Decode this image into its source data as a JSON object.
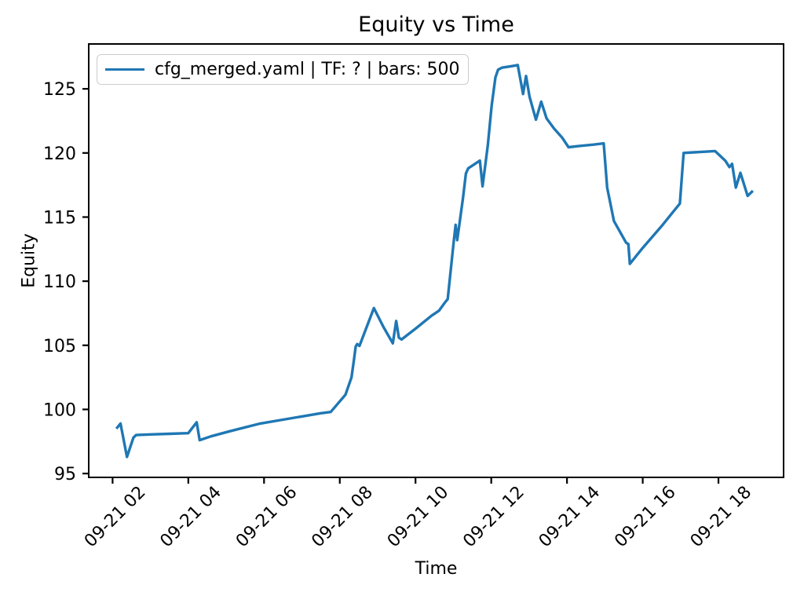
{
  "chart_data": {
    "type": "line",
    "title": "Equity vs Time",
    "xlabel": "Time",
    "ylabel": "Equity",
    "grid": false,
    "legend_position": "upper left",
    "line_color": "#1f77b4",
    "xlim": [
      1.37,
      19.72
    ],
    "ylim": [
      94.7,
      128.5
    ],
    "x_unit": "hours on 09-21",
    "x_ticks": [
      {
        "value": 2,
        "label": "09-21 02"
      },
      {
        "value": 4,
        "label": "09-21 04"
      },
      {
        "value": 6,
        "label": "09-21 06"
      },
      {
        "value": 8,
        "label": "09-21 08"
      },
      {
        "value": 10,
        "label": "09-21 10"
      },
      {
        "value": 12,
        "label": "09-21 12"
      },
      {
        "value": 14,
        "label": "09-21 14"
      },
      {
        "value": 16,
        "label": "09-21 16"
      },
      {
        "value": 18,
        "label": "09-21 18"
      }
    ],
    "y_ticks": [
      95,
      100,
      105,
      110,
      115,
      120,
      125
    ],
    "series": [
      {
        "name": "cfg_merged.yaml | TF: ? | bars: 500",
        "color": "#1f77b4",
        "points": [
          [
            2.1,
            98.5
          ],
          [
            2.21,
            98.9
          ],
          [
            2.38,
            96.3
          ],
          [
            2.55,
            97.8
          ],
          [
            2.62,
            98.0
          ],
          [
            3.0,
            98.05
          ],
          [
            3.5,
            98.1
          ],
          [
            4.0,
            98.15
          ],
          [
            4.22,
            99.0
          ],
          [
            4.3,
            97.6
          ],
          [
            4.6,
            97.9
          ],
          [
            5.1,
            98.3
          ],
          [
            5.9,
            98.9
          ],
          [
            6.5,
            99.2
          ],
          [
            7.0,
            99.45
          ],
          [
            7.5,
            99.7
          ],
          [
            7.76,
            99.8
          ],
          [
            8.15,
            101.15
          ],
          [
            8.31,
            102.5
          ],
          [
            8.38,
            104.0
          ],
          [
            8.42,
            104.9
          ],
          [
            8.46,
            105.1
          ],
          [
            8.52,
            104.95
          ],
          [
            8.9,
            107.9
          ],
          [
            9.15,
            106.45
          ],
          [
            9.4,
            105.15
          ],
          [
            9.49,
            106.9
          ],
          [
            9.56,
            105.6
          ],
          [
            9.63,
            105.45
          ],
          [
            10.0,
            106.3
          ],
          [
            10.42,
            107.3
          ],
          [
            10.62,
            107.7
          ],
          [
            10.78,
            108.35
          ],
          [
            10.85,
            108.6
          ],
          [
            11.01,
            113.1
          ],
          [
            11.06,
            114.4
          ],
          [
            11.1,
            113.2
          ],
          [
            11.25,
            116.4
          ],
          [
            11.33,
            118.4
          ],
          [
            11.39,
            118.8
          ],
          [
            11.7,
            119.4
          ],
          [
            11.77,
            117.4
          ],
          [
            11.91,
            120.6
          ],
          [
            12.01,
            123.7
          ],
          [
            12.11,
            125.9
          ],
          [
            12.18,
            126.5
          ],
          [
            12.28,
            126.65
          ],
          [
            12.5,
            126.75
          ],
          [
            12.7,
            126.85
          ],
          [
            12.84,
            124.6
          ],
          [
            12.92,
            126.0
          ],
          [
            13.01,
            124.4
          ],
          [
            13.18,
            122.6
          ],
          [
            13.32,
            124.0
          ],
          [
            13.46,
            122.7
          ],
          [
            13.66,
            121.9
          ],
          [
            13.87,
            121.2
          ],
          [
            14.04,
            120.45
          ],
          [
            14.35,
            120.55
          ],
          [
            14.7,
            120.65
          ],
          [
            14.97,
            120.75
          ],
          [
            15.06,
            117.3
          ],
          [
            15.24,
            114.7
          ],
          [
            15.56,
            113.0
          ],
          [
            15.62,
            112.9
          ],
          [
            15.66,
            111.35
          ],
          [
            16.0,
            112.6
          ],
          [
            16.5,
            114.3
          ],
          [
            16.8,
            115.4
          ],
          [
            16.98,
            116.05
          ],
          [
            17.08,
            120.0
          ],
          [
            17.35,
            120.05
          ],
          [
            17.65,
            120.1
          ],
          [
            17.91,
            120.15
          ],
          [
            18.18,
            119.4
          ],
          [
            18.29,
            118.9
          ],
          [
            18.36,
            119.15
          ],
          [
            18.46,
            117.3
          ],
          [
            18.58,
            118.45
          ],
          [
            18.77,
            116.65
          ],
          [
            18.91,
            117.05
          ]
        ]
      }
    ]
  }
}
